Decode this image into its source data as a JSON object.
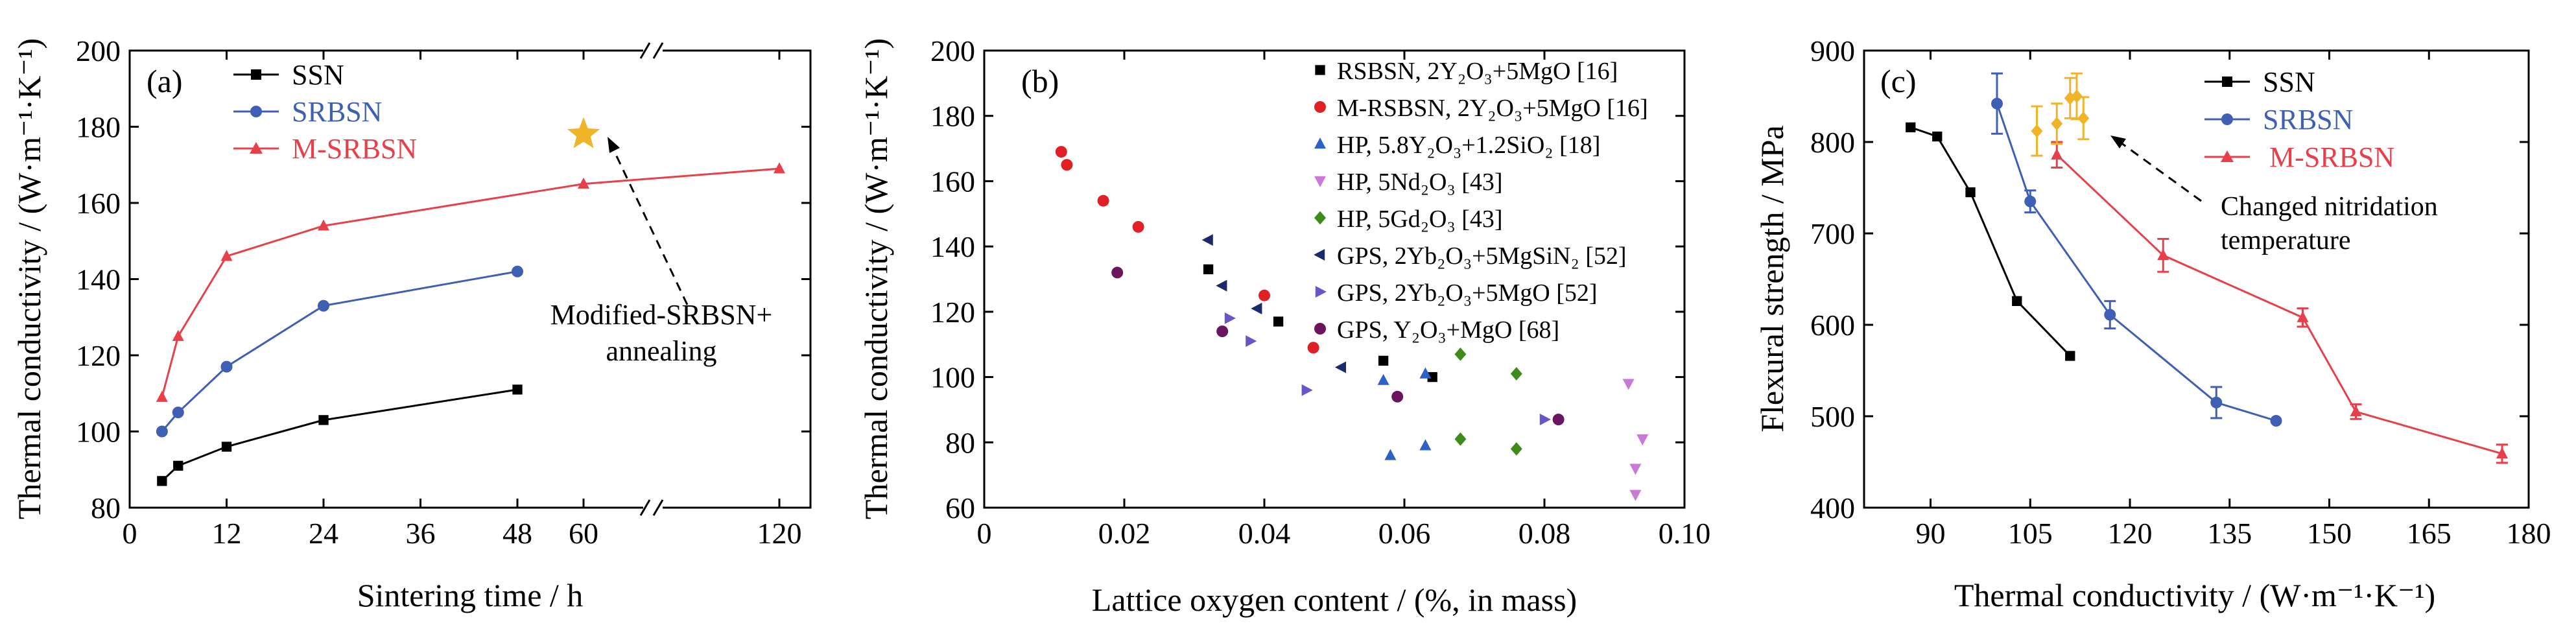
{
  "chart_data": [
    {
      "panel_label": "(a)",
      "type": "line",
      "xlabel": "Sintering time / h",
      "ylabel": "Thermal conductivity / (W·m⁻¹·K⁻¹)",
      "ylim": [
        80,
        200
      ],
      "y_ticks": [
        80,
        100,
        120,
        140,
        160,
        180,
        200
      ],
      "x_ticks": [
        0,
        12,
        24,
        36,
        48,
        60,
        120
      ],
      "x_axis_break": "between 48 and 60 on the upper and lower axes",
      "legend_placement": "top-left",
      "series": [
        {
          "name": "SSN",
          "color": "#000000",
          "marker": "square",
          "x": [
            4,
            6,
            12,
            24,
            48
          ],
          "y": [
            87,
            91,
            96,
            103,
            111
          ]
        },
        {
          "name": "SRBSN",
          "color": "#3e5fb4",
          "marker": "circle",
          "x": [
            4,
            6,
            12,
            24,
            48
          ],
          "y": [
            100,
            105,
            117,
            133,
            142
          ]
        },
        {
          "name": "M-SRBSN",
          "color": "#e8404a",
          "marker": "triangle",
          "x": [
            4,
            6,
            12,
            24,
            60,
            120
          ],
          "y": [
            109,
            125,
            146,
            154,
            165,
            169
          ]
        }
      ],
      "highlight_point": {
        "x": 60,
        "y": 178,
        "marker": "star",
        "color": "#f0b429"
      },
      "annotation": {
        "lines": [
          "Modified-SRBSN+",
          "annealing"
        ]
      }
    },
    {
      "panel_label": "(b)",
      "type": "scatter",
      "xlabel": "Lattice oxygen content / (%, in mass)",
      "ylabel": "Thermal conductivity / (W·m⁻¹·K⁻¹)",
      "xlim": [
        0,
        0.1
      ],
      "ylim": [
        60,
        200
      ],
      "x_ticks": [
        "0",
        "0.02",
        "0.04",
        "0.06",
        "0.08",
        "0.10"
      ],
      "y_ticks": [
        60,
        80,
        100,
        120,
        140,
        160,
        180,
        200
      ],
      "legend_placement": "top-right",
      "series": [
        {
          "name": "RSBSN, 2Y₂O₃+5MgO [16]",
          "color": "#000000",
          "marker": "square",
          "x": [
            0.032,
            0.042,
            0.057,
            0.064
          ],
          "y": [
            133,
            117,
            105,
            100
          ]
        },
        {
          "name": "M-RSBSN, 2Y₂O₃+5MgO [16]",
          "color": "#e02025",
          "marker": "circle",
          "x": [
            0.011,
            0.0118,
            0.017,
            0.022,
            0.04,
            0.047
          ],
          "y": [
            169,
            165,
            154,
            146,
            125,
            109
          ]
        },
        {
          "name": "HP, 5.8Y₂O₃+1.2SiO₂ [18]",
          "color": "#2a63c4",
          "marker": "triangle",
          "x": [
            0.057,
            0.058,
            0.063,
            0.063
          ],
          "y": [
            99,
            76,
            79,
            101
          ]
        },
        {
          "name": "HP, 5Nd₂O₃ [43]",
          "color": "#c77ad6",
          "marker": "triangle-down",
          "x": [
            0.092,
            0.093,
            0.094,
            0.093
          ],
          "y": [
            98,
            72,
            81,
            64
          ]
        },
        {
          "name": "HP, 5Gd₂O₃ [43]",
          "color": "#3d8c1a",
          "marker": "diamond",
          "x": [
            0.068,
            0.068,
            0.076,
            0.076
          ],
          "y": [
            107,
            81,
            101,
            78
          ]
        },
        {
          "name": "GPS, 2Yb₂O₃+5MgSiN₂ [52]",
          "color": "#1a2a6c",
          "marker": "triangle-left",
          "x": [
            0.032,
            0.034,
            0.039,
            0.051
          ],
          "y": [
            142,
            128,
            121,
            103
          ]
        },
        {
          "name": "GPS, 2Yb₂O₃+5MgO [52]",
          "color": "#6a55c8",
          "marker": "triangle-right",
          "x": [
            0.035,
            0.038,
            0.046,
            0.08
          ],
          "y": [
            118,
            111,
            96,
            87
          ]
        },
        {
          "name": "GPS, Y₂O₃+MgO [68]",
          "color": "#6b1460",
          "marker": "circle",
          "x": [
            0.019,
            0.034,
            0.059,
            0.082
          ],
          "y": [
            132,
            114,
            94,
            87
          ]
        }
      ]
    },
    {
      "panel_label": "(c)",
      "type": "line",
      "xlabel": "Thermal conductivity / (W·m⁻¹·K⁻¹)",
      "ylabel": "Flexural strength / MPa",
      "xlim": [
        80,
        180
      ],
      "ylim": [
        400,
        900
      ],
      "x_ticks": [
        90,
        105,
        120,
        135,
        150,
        165,
        180
      ],
      "y_ticks": [
        400,
        500,
        600,
        700,
        800,
        900
      ],
      "legend_placement": "top-right",
      "series": [
        {
          "name": "SSN",
          "color": "#000000",
          "marker": "square",
          "x": [
            87,
            91,
            96,
            103,
            111
          ],
          "y": [
            816,
            806,
            745,
            626,
            566
          ],
          "yerr": [
            0,
            0,
            0,
            0,
            0
          ]
        },
        {
          "name": "SRBSN",
          "color": "#3e5fb4",
          "marker": "circle",
          "x": [
            100,
            105,
            117,
            133,
            142
          ],
          "y": [
            842,
            735,
            611,
            515,
            495
          ],
          "yerr": [
            33,
            12,
            15,
            17,
            0
          ]
        },
        {
          "name": "M-SRBSN",
          "color": "#e8404a",
          "marker": "triangle",
          "x": [
            109,
            125,
            146,
            154,
            176
          ],
          "y": [
            786,
            676,
            608,
            505,
            459
          ],
          "yerr": [
            14,
            18,
            10,
            8,
            10
          ]
        },
        {
          "name": "",
          "color": "#f0b429",
          "marker": "diamond",
          "x": [
            106,
            109,
            111,
            113,
            112
          ],
          "y": [
            812,
            820,
            848,
            826,
            850
          ],
          "yerr": [
            27,
            22,
            22,
            23,
            25
          ]
        }
      ],
      "annotation": {
        "lines": [
          "Changed nitridation",
          "temperature"
        ]
      }
    }
  ]
}
